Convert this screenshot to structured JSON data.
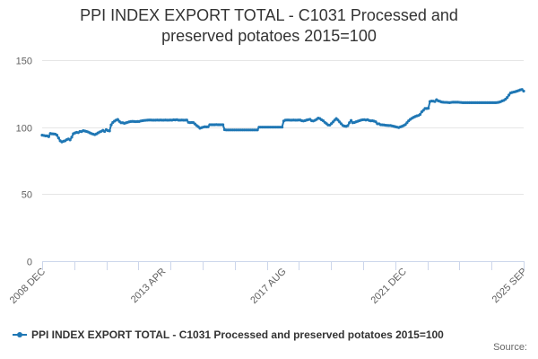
{
  "chart_data": {
    "type": "line",
    "title_line1": "PPI INDEX EXPORT TOTAL - C1031 Processed and",
    "title_line2": "preserved potatoes 2015=100",
    "xlabel": "",
    "ylabel": "",
    "ylim": [
      0,
      150
    ],
    "yticks": [
      0,
      50,
      100,
      150
    ],
    "x_start": "2008 DEC",
    "x_end": "2025 SEP",
    "x_tick_labels": [
      "2008 DEC",
      "2013 APR",
      "2017 AUG",
      "2021 DEC",
      "2025 SEP"
    ],
    "grid": true,
    "legend_position": "bottom-left",
    "series": [
      {
        "name": "PPI INDEX EXPORT TOTAL - C1031 Processed and preserved potatoes 2015=100",
        "color": "#1f77b4",
        "values": [
          94,
          93.8,
          93.5,
          93.5,
          92.9,
          95.3,
          95,
          94.9,
          94.8,
          94,
          91.9,
          89.8,
          89,
          89.5,
          89.8,
          90.7,
          91.2,
          90.5,
          92.5,
          95.1,
          95.7,
          96.1,
          95.9,
          96.8,
          96.7,
          97.4,
          97.1,
          96.8,
          96.4,
          95.8,
          95.2,
          94.8,
          94.4,
          94.9,
          95.7,
          96.4,
          96.9,
          97.6,
          96.8,
          98.1,
          97.4,
          97.2,
          101.7,
          103.5,
          104.5,
          105.2,
          105.7,
          104.3,
          103.3,
          103.3,
          102.9,
          103.2,
          103.6,
          104,
          104.2,
          104.3,
          104.2,
          104.1,
          104.2,
          104.2,
          104.6,
          104.8,
          105,
          105.1,
          105.2,
          105.3,
          105.3,
          105.2,
          105.2,
          105.2,
          105.3,
          105.2,
          105.3,
          105.2,
          105.2,
          105.3,
          105.2,
          105.2,
          105.3,
          105.2,
          105.5,
          105.4,
          105.6,
          105.2,
          105.2,
          105.3,
          105.2,
          105.2,
          105.3,
          103.6,
          103.4,
          103.5,
          103.4,
          102.4,
          101.2,
          100.4,
          99.2,
          99.6,
          100,
          100.3,
          100.2,
          100.3,
          101.8,
          101.8,
          101.8,
          101.8,
          101.9,
          101.8,
          101.8,
          101.8,
          101.8,
          98.1,
          97.9,
          97.9,
          97.9,
          97.9,
          97.9,
          97.9,
          97.9,
          97.9,
          97.9,
          97.9,
          97.9,
          97.9,
          97.9,
          97.9,
          97.9,
          97.9,
          97.9,
          97.9,
          97.9,
          97.9,
          100,
          100,
          100,
          100,
          100,
          100,
          100,
          100,
          100,
          100,
          100,
          100,
          100,
          100,
          100,
          104.6,
          105.2,
          105.3,
          105.3,
          105.2,
          105.2,
          105.3,
          105.2,
          105.2,
          105.3,
          105.3,
          104.8,
          104.6,
          104.9,
          105.3,
          105.6,
          105.8,
          104.8,
          104.6,
          105.1,
          105.8,
          106.7,
          106.4,
          105.5,
          104.8,
          103.6,
          102.6,
          101.6,
          101.5,
          102.6,
          103.9,
          105.2,
          106.4,
          105.3,
          103.9,
          102.5,
          101.2,
          100.8,
          100.6,
          101.1,
          103.3,
          105,
          103.3,
          103.5,
          104,
          104.4,
          104.8,
          105.2,
          105.5,
          105.6,
          105.3,
          105.6,
          105,
          104.7,
          104.8,
          104.5,
          104,
          102.5,
          102.5,
          101.8,
          101.7,
          101.6,
          101.4,
          101.3,
          101.2,
          101.2,
          100.9,
          100.6,
          100.3,
          100,
          99.7,
          100.2,
          100.6,
          101.2,
          101.9,
          103.3,
          104.7,
          105.8,
          106.6,
          107.3,
          107.9,
          108.4,
          108.7,
          109.5,
          111.4,
          112.6,
          113.9,
          113.9,
          114.1,
          119.1,
          119.5,
          119.4,
          119.1,
          120.5,
          119.6,
          119.3,
          118.8,
          118.6,
          118.5,
          118.5,
          118.4,
          118.3,
          118.5,
          118.6,
          118.6,
          118.6,
          118.6,
          118.5,
          118.4,
          118.3,
          118.3,
          118.3,
          118.3,
          118.3,
          118.3,
          118.3,
          118.3,
          118.3,
          118.3,
          118.3,
          118.3,
          118.3,
          118.3,
          118.3,
          118.3,
          118.3,
          118.3,
          118.3,
          118.3,
          118.3,
          118.4,
          118.6,
          119,
          119.6,
          120,
          120.9,
          122.1,
          123.9,
          125.5,
          125.9,
          126.2,
          126.5,
          126.9,
          127.3,
          127.8,
          128.1,
          126.9
        ]
      }
    ]
  },
  "legend": {
    "label": "PPI INDEX EXPORT TOTAL - C1031 Processed and preserved potatoes 2015=100"
  },
  "source": {
    "label": "Source:"
  }
}
